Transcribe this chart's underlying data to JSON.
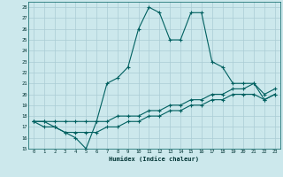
{
  "xlabel": "Humidex (Indice chaleur)",
  "bg_color": "#cce8ec",
  "grid_color": "#aaccd4",
  "line_color": "#006060",
  "xlim": [
    -0.5,
    23.5
  ],
  "ylim": [
    15,
    28.5
  ],
  "xticks": [
    0,
    1,
    2,
    3,
    4,
    5,
    6,
    7,
    8,
    9,
    10,
    11,
    12,
    13,
    14,
    15,
    16,
    17,
    18,
    19,
    20,
    21,
    22,
    23
  ],
  "yticks": [
    15,
    16,
    17,
    18,
    19,
    20,
    21,
    22,
    23,
    24,
    25,
    26,
    27,
    28
  ],
  "series1_x": [
    0,
    1,
    2,
    3,
    4,
    5,
    6,
    7,
    8,
    9,
    10,
    11,
    12,
    13,
    14,
    15,
    16,
    17,
    18,
    19,
    20,
    21,
    22,
    23
  ],
  "series1_y": [
    17.5,
    17.5,
    17.0,
    16.5,
    16.0,
    15.0,
    17.5,
    21.0,
    21.5,
    22.5,
    26.0,
    28.0,
    27.5,
    25.0,
    25.0,
    27.5,
    27.5,
    23.0,
    22.5,
    21.0,
    21.0,
    21.0,
    19.5,
    20.0
  ],
  "series2_x": [
    0,
    1,
    2,
    3,
    4,
    5,
    6,
    7,
    8,
    9,
    10,
    11,
    12,
    13,
    14,
    15,
    16,
    17,
    18,
    19,
    20,
    21,
    22,
    23
  ],
  "series2_y": [
    17.5,
    17.5,
    17.5,
    17.5,
    17.5,
    17.5,
    17.5,
    17.5,
    18.0,
    18.0,
    18.0,
    18.5,
    18.5,
    19.0,
    19.0,
    19.5,
    19.5,
    20.0,
    20.0,
    20.5,
    20.5,
    21.0,
    20.0,
    20.5
  ],
  "series3_x": [
    0,
    1,
    2,
    3,
    4,
    5,
    6,
    7,
    8,
    9,
    10,
    11,
    12,
    13,
    14,
    15,
    16,
    17,
    18,
    19,
    20,
    21,
    22,
    23
  ],
  "series3_y": [
    17.5,
    17.0,
    17.0,
    16.5,
    16.5,
    16.5,
    16.5,
    17.0,
    17.0,
    17.5,
    17.5,
    18.0,
    18.0,
    18.5,
    18.5,
    19.0,
    19.0,
    19.5,
    19.5,
    20.0,
    20.0,
    20.0,
    19.5,
    20.0
  ]
}
